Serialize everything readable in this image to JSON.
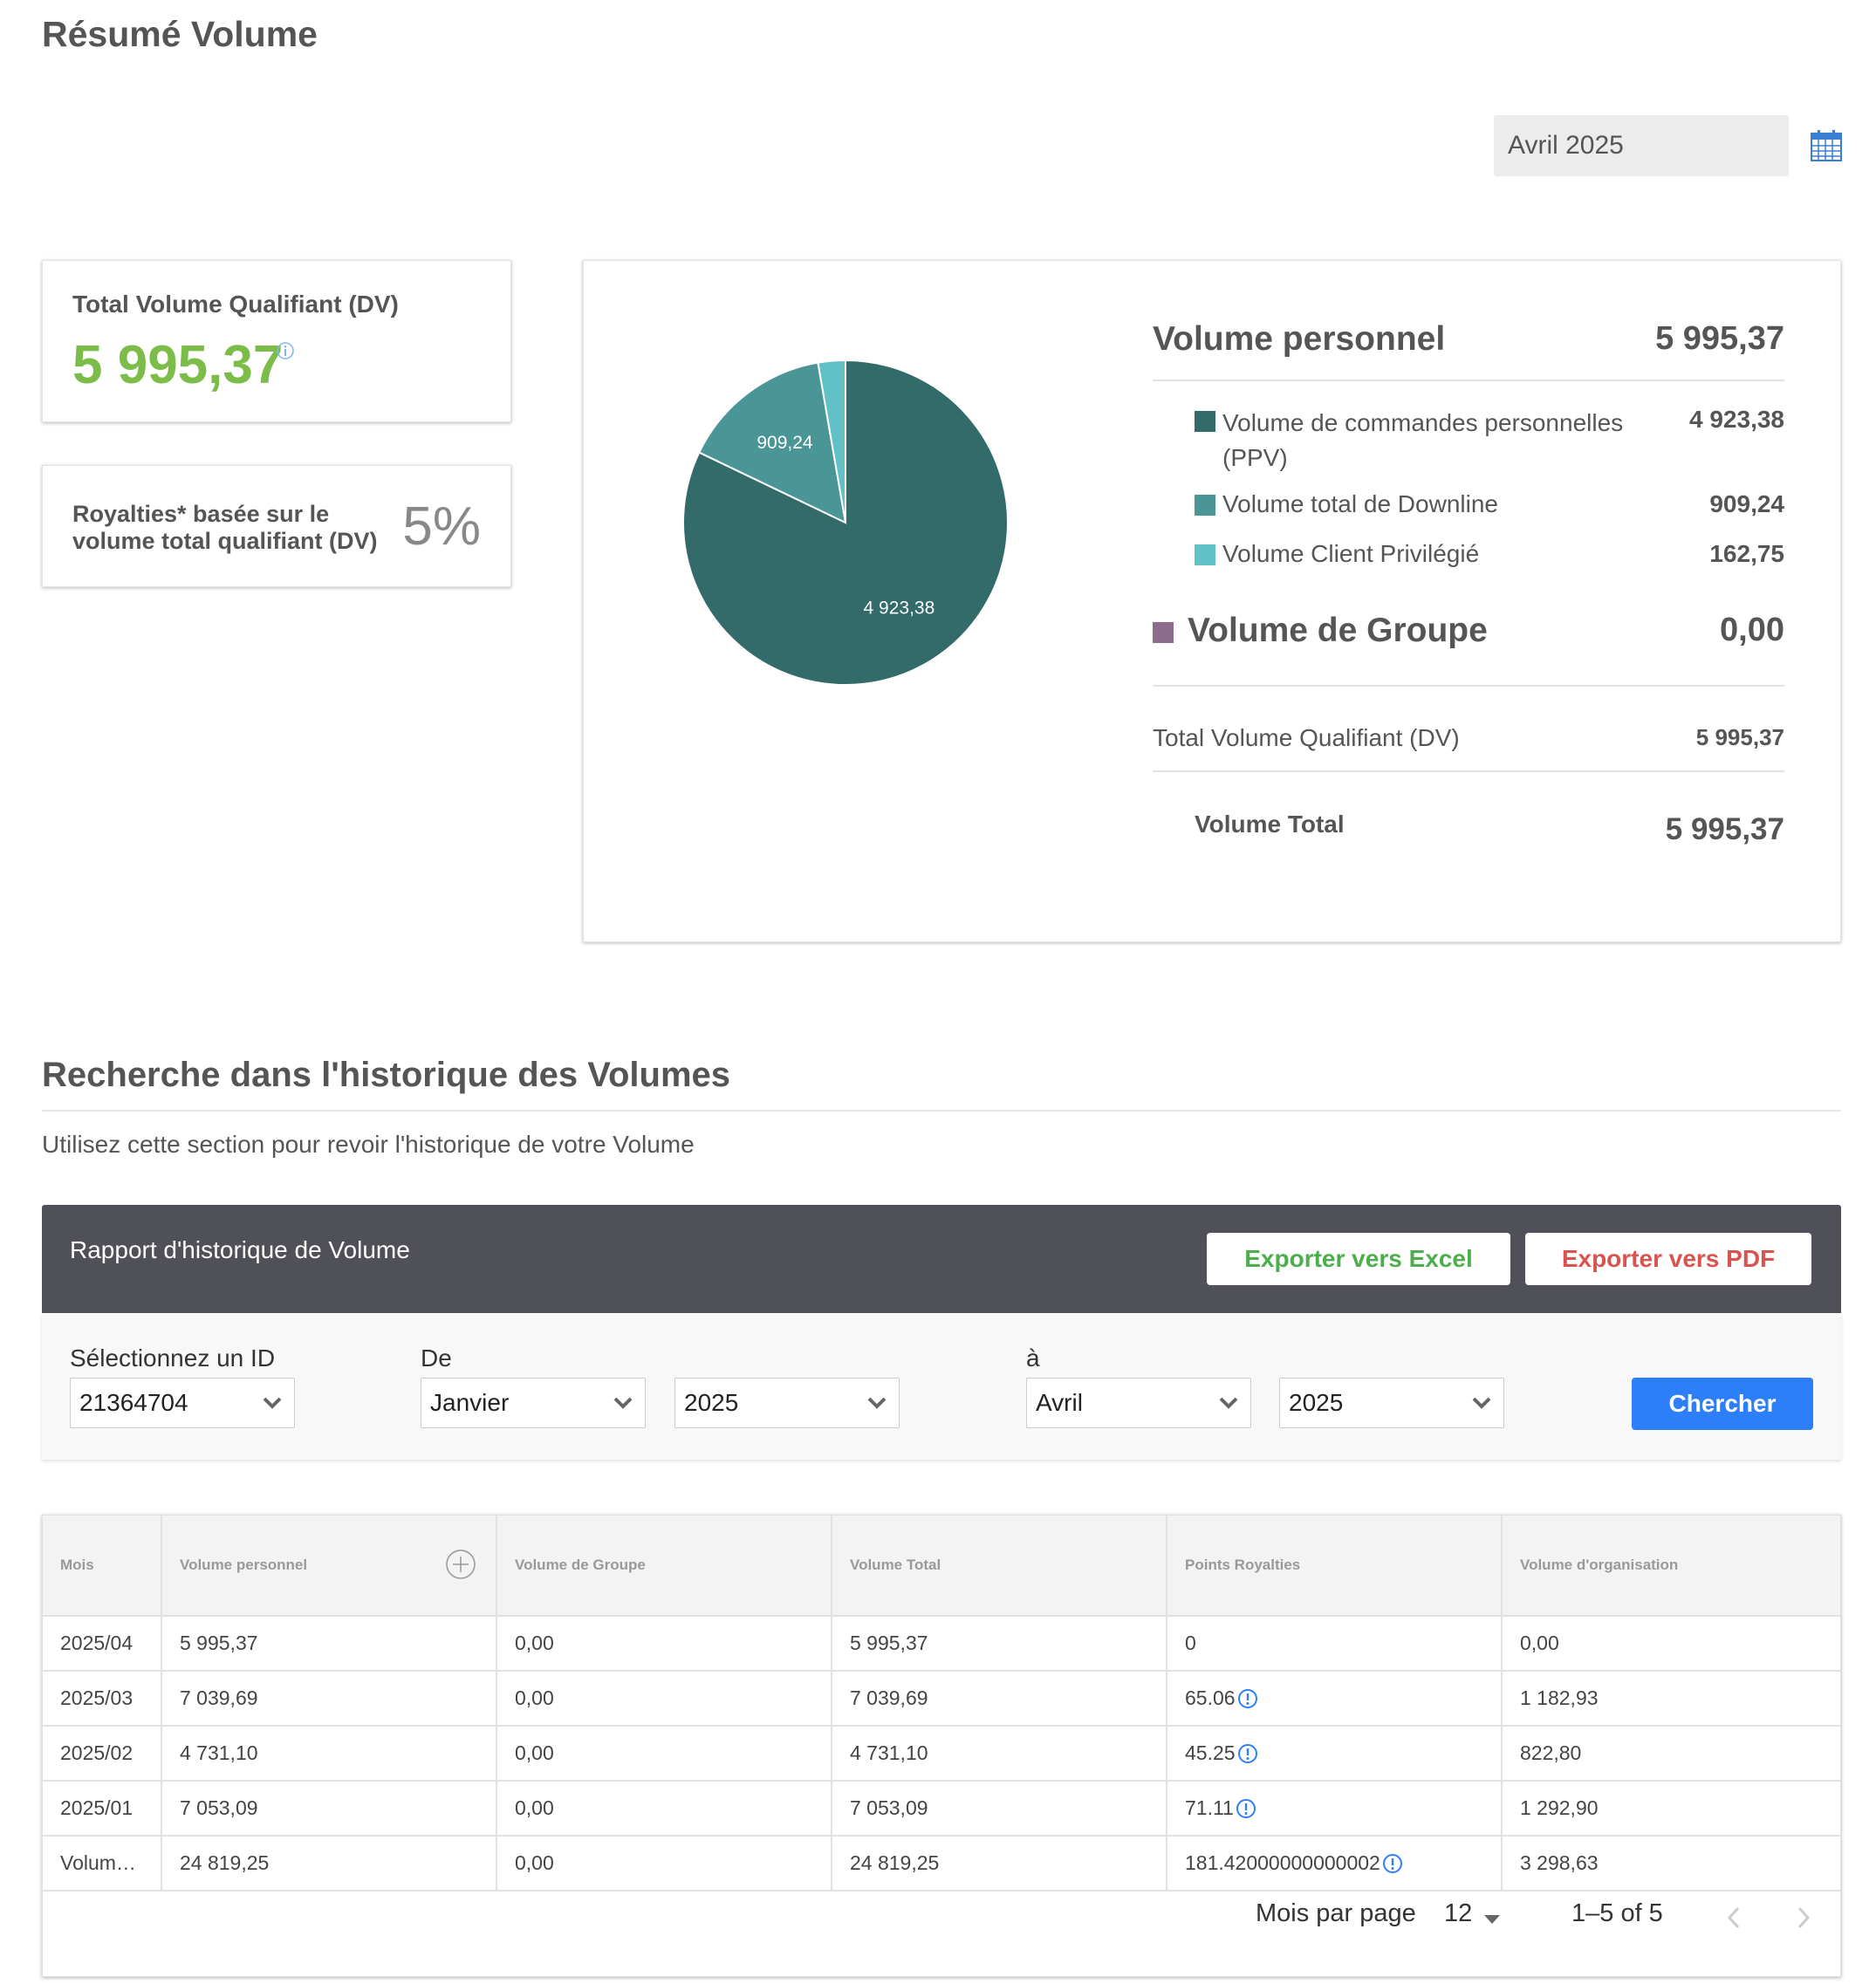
{
  "page": {
    "title": "Résumé Volume"
  },
  "period": {
    "selected": "Avril 2025"
  },
  "dv_card": {
    "label": "Total Volume Qualifiant (DV)",
    "value": "5 995,37"
  },
  "royalties_card": {
    "label": "Royalties* basée sur le volume total qualifiant (DV)",
    "value": "5%"
  },
  "summary": {
    "personal": {
      "label": "Volume personnel",
      "value": "5 995,37"
    },
    "items": [
      {
        "label": "Volume de commandes personnelles (PPV)",
        "value": "4 923,38",
        "color": "#336b6b"
      },
      {
        "label": "Volume total de Downline",
        "value": "909,24",
        "color": "#4a9696"
      },
      {
        "label": "Volume Client Privilégié",
        "value": "162,75",
        "color": "#62c1c6"
      }
    ],
    "group": {
      "label": "Volume de Groupe",
      "value": "0,00",
      "color": "#8c6b8c"
    },
    "dv": {
      "label": "Total Volume Qualifiant (DV)",
      "value": "5 995,37"
    },
    "total": {
      "label": "Volume Total",
      "value": "5 995,37"
    }
  },
  "chart_data": {
    "type": "pie",
    "categories": [
      "Volume de commandes personnelles (PPV)",
      "Volume total de Downline",
      "Volume Client Privilégié"
    ],
    "values": [
      4923.38,
      909.24,
      162.75
    ],
    "labels": [
      "4 923,38",
      "909,24",
      ""
    ],
    "colors": [
      "#336b6b",
      "#4a9696",
      "#62c1c6"
    ]
  },
  "history": {
    "title": "Recherche dans l'historique des Volumes",
    "description": "Utilisez cette section pour revoir l'historique de votre Volume",
    "report_title": "Rapport d'historique de Volume",
    "export_excel": "Exporter vers Excel",
    "export_pdf": "Exporter vers PDF",
    "filters": {
      "id_label": "Sélectionnez un ID",
      "id_value": "21364704",
      "from_label": "De",
      "from_month": "Janvier",
      "from_year": "2025",
      "to_label": "à",
      "to_month": "Avril",
      "to_year": "2025",
      "search_label": "Chercher"
    },
    "table": {
      "headers": [
        "Mois",
        "Volume personnel",
        "Volume de Groupe",
        "Volume Total",
        "Points Royalties",
        "Volume d'organisation"
      ],
      "rows": [
        [
          "2025/04",
          "5 995,37",
          "0,00",
          "5 995,37",
          "0",
          "0,00"
        ],
        [
          "2025/03",
          "7 039,69",
          "0,00",
          "7 039,69",
          "65.06",
          "1 182,93"
        ],
        [
          "2025/02",
          "4 731,10",
          "0,00",
          "4 731,10",
          "45.25",
          "822,80"
        ],
        [
          "2025/01",
          "7 053,09",
          "0,00",
          "7 053,09",
          "71.11",
          "1 292,90"
        ],
        [
          "Volum…",
          "24 819,25",
          "0,00",
          "24 819,25",
          "181.42000000000002",
          "3 298,63"
        ]
      ]
    },
    "pagination": {
      "per_page_label": "Mois par page",
      "per_page": "12",
      "range": "1–5 of 5"
    }
  },
  "icons": {
    "calendar": "calendar-icon",
    "info": "info-icon",
    "expand": "plus-circle-icon",
    "prev": "chevron-left-icon",
    "next": "chevron-right-icon"
  },
  "colors": {
    "accent_green": "#7cbd4a",
    "primary_blue": "#2d7ff9",
    "excel_green": "#4cae4c",
    "pdf_red": "#d9534f",
    "header_dark": "#505158"
  }
}
